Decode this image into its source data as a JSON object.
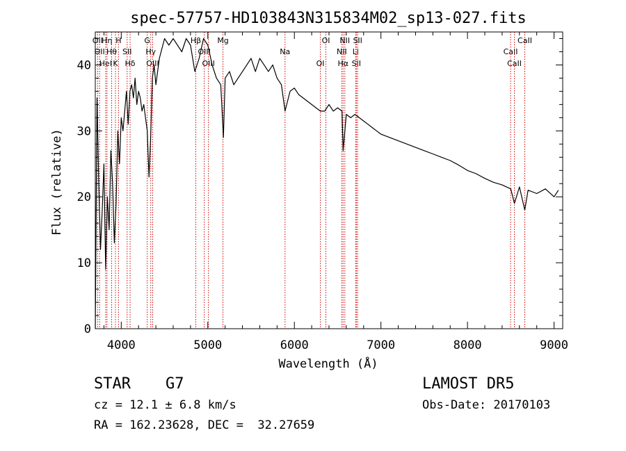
{
  "chart_data": {
    "type": "line",
    "title": "spec-57757-HD103843N315834M02_sp13-027.fits",
    "xlabel": "Wavelength (Å)",
    "ylabel": "Flux (relative)",
    "xlim": [
      3700,
      9100
    ],
    "ylim": [
      0,
      45
    ],
    "x_ticks": [
      4000,
      5000,
      6000,
      7000,
      8000,
      9000
    ],
    "y_ticks": [
      0,
      10,
      20,
      30,
      40
    ],
    "grid": false,
    "series": [
      {
        "x": [
          3700,
          3720,
          3740,
          3760,
          3780,
          3800,
          3820,
          3840,
          3860,
          3880,
          3900,
          3920,
          3940,
          3960,
          3980,
          4000,
          4020,
          4040,
          4060,
          4080,
          4100,
          4120,
          4140,
          4160,
          4180,
          4200,
          4220,
          4240,
          4260,
          4280,
          4300,
          4320,
          4340,
          4360,
          4380,
          4400,
          4420,
          4440,
          4460,
          4480,
          4500,
          4550,
          4600,
          4650,
          4700,
          4750,
          4800,
          4850,
          4900,
          4950,
          5000,
          5050,
          5100,
          5150,
          5180,
          5200,
          5250,
          5300,
          5350,
          5400,
          5450,
          5500,
          5550,
          5600,
          5650,
          5700,
          5750,
          5800,
          5850,
          5892,
          5950,
          6000,
          6050,
          6100,
          6150,
          6200,
          6250,
          6300,
          6350,
          6400,
          6450,
          6500,
          6550,
          6563,
          6600,
          6650,
          6700,
          6750,
          6800,
          6850,
          6900,
          6950,
          7000,
          7100,
          7200,
          7300,
          7400,
          7500,
          7600,
          7700,
          7800,
          7900,
          8000,
          8100,
          8200,
          8300,
          8400,
          8500,
          8542,
          8600,
          8662,
          8700,
          8800,
          8900,
          9000,
          9050
        ],
        "values": [
          0,
          35,
          22,
          12,
          18,
          25,
          9,
          20,
          15,
          27,
          22,
          13,
          19,
          30,
          25,
          32,
          30,
          33,
          36,
          31,
          36,
          37,
          35,
          38,
          34,
          36,
          35,
          33,
          34,
          32,
          30,
          23,
          29,
          38,
          40,
          37,
          39,
          41,
          42,
          43,
          44,
          43,
          44,
          43,
          42,
          44,
          43,
          39,
          41,
          44,
          43,
          40,
          38,
          37,
          29,
          38,
          39,
          37,
          38,
          39,
          40,
          41,
          39,
          41,
          40,
          39,
          40,
          38,
          37,
          33,
          36,
          36.5,
          35.5,
          35,
          34.5,
          34,
          33.5,
          33,
          33,
          34,
          33,
          33.5,
          33,
          27,
          32.5,
          32,
          32.5,
          32,
          31.5,
          31,
          30.5,
          30,
          29.5,
          29,
          28.5,
          28,
          27.5,
          27,
          26.5,
          26,
          25.5,
          24.8,
          24,
          23.5,
          22.8,
          22.2,
          21.8,
          21.2,
          19,
          21.5,
          18,
          21,
          20.5,
          21.2,
          20,
          21
        ]
      }
    ],
    "line_annotations": [
      {
        "wavelength": 3727,
        "labels": [
          "OII"
        ]
      },
      {
        "wavelength": 3750,
        "labels": [
          "OII"
        ]
      },
      {
        "wavelength": 3820,
        "labels": [
          "HeI"
        ]
      },
      {
        "wavelength": 3835,
        "labels": [
          "Hη"
        ]
      },
      {
        "wavelength": 3889,
        "labels": [
          "Hθ"
        ]
      },
      {
        "wavelength": 3933,
        "labels": [
          "K"
        ]
      },
      {
        "wavelength": 3968,
        "labels": [
          "H"
        ]
      },
      {
        "wavelength": 4068,
        "labels": [
          "SII"
        ]
      },
      {
        "wavelength": 4102,
        "labels": [
          "Hδ"
        ]
      },
      {
        "wavelength": 4300,
        "labels": [
          "G"
        ]
      },
      {
        "wavelength": 4341,
        "labels": [
          "Hγ"
        ]
      },
      {
        "wavelength": 4363,
        "labels": [
          "OIII"
        ]
      },
      {
        "wavelength": 4861,
        "labels": [
          "Hβ"
        ]
      },
      {
        "wavelength": 4959,
        "labels": [
          "OIII"
        ]
      },
      {
        "wavelength": 5007,
        "labels": [
          "OIII"
        ]
      },
      {
        "wavelength": 5175,
        "labels": [
          "Mg"
        ]
      },
      {
        "wavelength": 5892,
        "labels": [
          "Na"
        ]
      },
      {
        "wavelength": 6300,
        "labels": [
          "OI"
        ]
      },
      {
        "wavelength": 6364,
        "labels": [
          "OI"
        ]
      },
      {
        "wavelength": 6548,
        "labels": [
          "NII"
        ]
      },
      {
        "wavelength": 6563,
        "labels": [
          "Hα"
        ]
      },
      {
        "wavelength": 6583,
        "labels": [
          "NII"
        ]
      },
      {
        "wavelength": 6708,
        "labels": [
          "Li"
        ]
      },
      {
        "wavelength": 6716,
        "labels": [
          "SII"
        ]
      },
      {
        "wavelength": 6731,
        "labels": [
          "SII"
        ]
      },
      {
        "wavelength": 8498,
        "labels": [
          "CaII"
        ]
      },
      {
        "wavelength": 8542,
        "labels": [
          "CaII"
        ]
      },
      {
        "wavelength": 8662,
        "labels": [
          "CaII"
        ]
      }
    ],
    "line_color": "#000000",
    "annotation_color": "#cc0000"
  },
  "info": {
    "object_class": "STAR",
    "subclass": "G7",
    "survey": "LAMOST DR5",
    "redshift_text": "cz = 12.1 ± 6.8 km/s",
    "obs_date_text": "Obs-Date: 20170103",
    "coords_text": "RA = 162.23628, DEC =  32.27659"
  }
}
